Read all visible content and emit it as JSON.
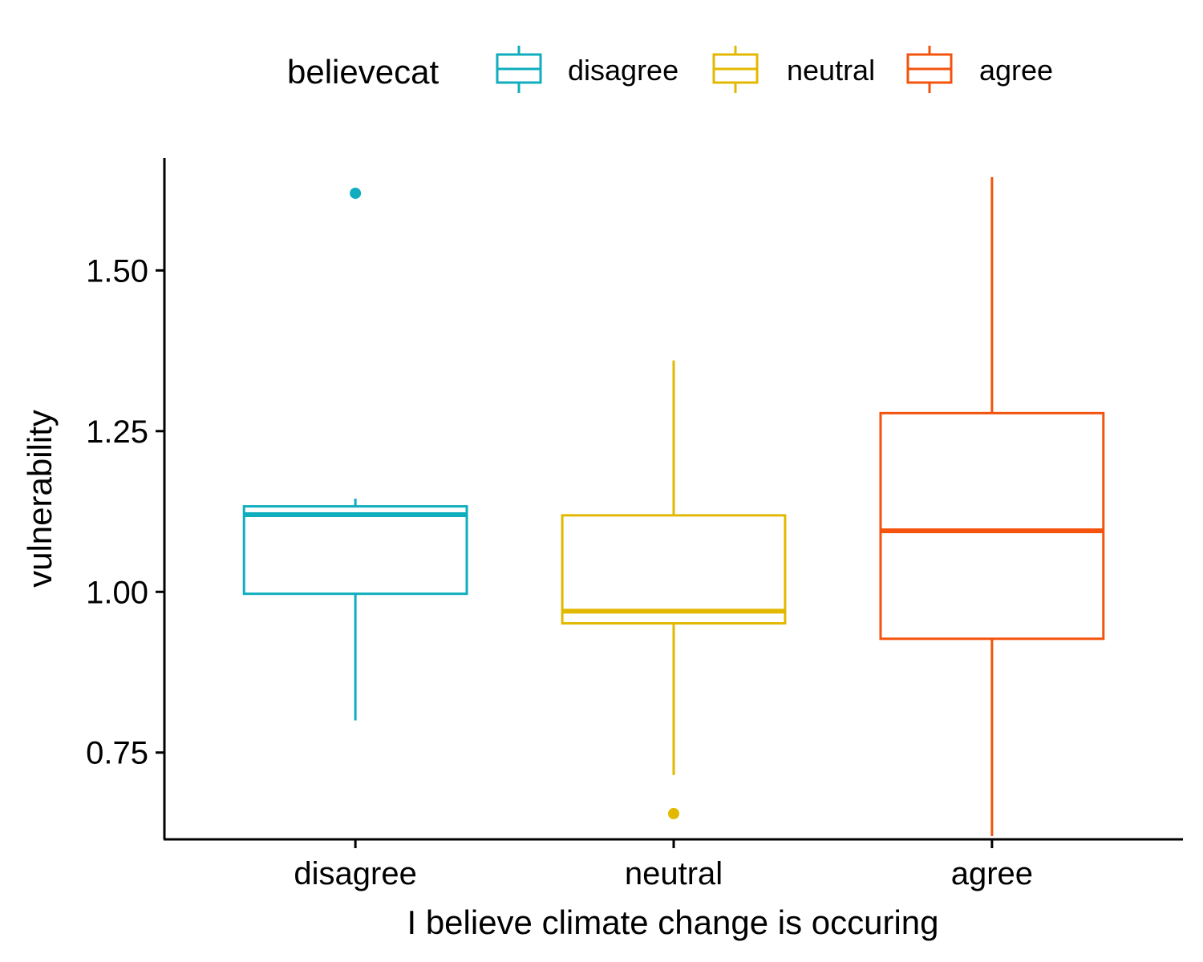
{
  "chart_data": {
    "type": "boxplot",
    "xlabel": "I believe climate change is occuring",
    "ylabel": "vulnerability",
    "categories": [
      "disagree",
      "neutral",
      "agree"
    ],
    "ylim": [
      0.615,
      1.675
    ],
    "yticks": [
      0.75,
      1.0,
      1.25,
      1.5
    ],
    "ytick_labels": [
      "0.75",
      "1.00",
      "1.25",
      "1.50"
    ],
    "legend": {
      "title": "believecat",
      "position": "top",
      "entries": [
        "disagree",
        "neutral",
        "agree"
      ]
    },
    "colors": {
      "disagree": "#0fadbd",
      "neutral": "#e2b800",
      "agree": "#f4530d"
    },
    "grid": false,
    "boxes": [
      {
        "category": "disagree",
        "whisker_low": 0.8,
        "q1": 0.997,
        "median": 1.12,
        "q3": 1.133,
        "whisker_high": 1.145,
        "outliers": [
          1.62
        ]
      },
      {
        "category": "neutral",
        "whisker_low": 0.715,
        "q1": 0.951,
        "median": 0.97,
        "q3": 1.119,
        "whisker_high": 1.36,
        "outliers": [
          0.655
        ]
      },
      {
        "category": "agree",
        "whisker_low": 0.62,
        "q1": 0.927,
        "median": 1.095,
        "q3": 1.278,
        "whisker_high": 1.645,
        "outliers": []
      }
    ]
  }
}
